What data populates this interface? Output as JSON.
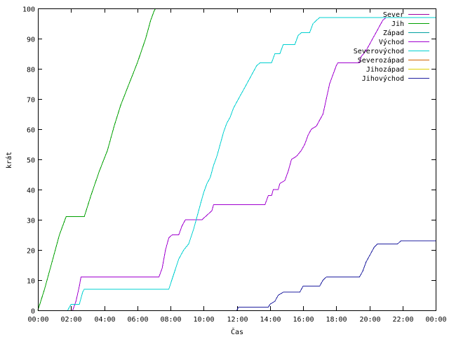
{
  "chart_data": {
    "type": "line",
    "title": "",
    "xlabel": "Čas",
    "ylabel": "krát",
    "xlim": [
      0,
      24
    ],
    "ylim": [
      0,
      100
    ],
    "x_ticks": [
      {
        "value": 0,
        "label": "00:00"
      },
      {
        "value": 2,
        "label": "02:00"
      },
      {
        "value": 4,
        "label": "04:00"
      },
      {
        "value": 6,
        "label": "06:00"
      },
      {
        "value": 8,
        "label": "08:00"
      },
      {
        "value": 10,
        "label": "10:00"
      },
      {
        "value": 12,
        "label": "12:00"
      },
      {
        "value": 14,
        "label": "14:00"
      },
      {
        "value": 16,
        "label": "16:00"
      },
      {
        "value": 18,
        "label": "18:00"
      },
      {
        "value": 20,
        "label": "20:00"
      },
      {
        "value": 22,
        "label": "22:00"
      },
      {
        "value": 24,
        "label": "00:00"
      }
    ],
    "y_ticks": [
      0,
      10,
      20,
      30,
      40,
      50,
      60,
      70,
      80,
      90,
      100
    ],
    "grid": false,
    "legend_position": "top-right",
    "series": [
      {
        "name": "Sever",
        "color": "#a000a0",
        "points": []
      },
      {
        "name": "Jih",
        "color": "#00a000",
        "points": [
          [
            0,
            0
          ],
          [
            0.4,
            7
          ],
          [
            0.9,
            17
          ],
          [
            1.3,
            25
          ],
          [
            1.7,
            31
          ],
          [
            2.8,
            31
          ],
          [
            3.2,
            38
          ],
          [
            3.7,
            46
          ],
          [
            4.2,
            53
          ],
          [
            4.6,
            61
          ],
          [
            5.0,
            68
          ],
          [
            5.5,
            75
          ],
          [
            6.0,
            82
          ],
          [
            6.5,
            90
          ],
          [
            6.8,
            96
          ],
          [
            7.0,
            99
          ],
          [
            7.1,
            100
          ]
        ]
      },
      {
        "name": "Západ",
        "color": "#00a0a0",
        "points": []
      },
      {
        "name": "Východ",
        "color": "#a000d0",
        "points": [
          [
            2.1,
            0
          ],
          [
            2.3,
            3
          ],
          [
            2.5,
            8
          ],
          [
            2.6,
            11
          ],
          [
            7.3,
            11
          ],
          [
            7.5,
            14
          ],
          [
            7.7,
            20
          ],
          [
            7.9,
            24
          ],
          [
            8.1,
            25
          ],
          [
            8.5,
            25
          ],
          [
            8.7,
            28
          ],
          [
            8.9,
            30
          ],
          [
            9.9,
            30
          ],
          [
            10.1,
            31
          ],
          [
            10.5,
            33
          ],
          [
            10.6,
            35
          ],
          [
            13.7,
            35
          ],
          [
            13.9,
            38
          ],
          [
            14.1,
            38
          ],
          [
            14.2,
            40
          ],
          [
            14.5,
            40
          ],
          [
            14.6,
            42
          ],
          [
            14.9,
            43
          ],
          [
            15.1,
            46
          ],
          [
            15.3,
            50
          ],
          [
            15.6,
            51
          ],
          [
            15.9,
            53
          ],
          [
            16.1,
            55
          ],
          [
            16.3,
            58
          ],
          [
            16.5,
            60
          ],
          [
            16.8,
            61
          ],
          [
            17.0,
            63
          ],
          [
            17.2,
            65
          ],
          [
            17.4,
            70
          ],
          [
            17.6,
            75
          ],
          [
            17.8,
            78
          ],
          [
            18.0,
            81
          ],
          [
            18.1,
            82
          ],
          [
            19.4,
            82
          ],
          [
            19.5,
            84
          ],
          [
            19.8,
            86
          ],
          [
            20.0,
            88
          ],
          [
            20.2,
            90
          ],
          [
            20.4,
            92
          ],
          [
            20.6,
            94
          ],
          [
            20.8,
            96
          ],
          [
            21.0,
            97
          ]
        ]
      },
      {
        "name": "Severovýchod",
        "color": "#00d0d0",
        "points": [
          [
            1.8,
            0
          ],
          [
            1.9,
            1
          ],
          [
            2.0,
            2
          ],
          [
            2.5,
            2
          ],
          [
            2.7,
            6
          ],
          [
            2.8,
            7
          ],
          [
            7.9,
            7
          ],
          [
            8.2,
            12
          ],
          [
            8.5,
            17
          ],
          [
            8.8,
            20
          ],
          [
            9.1,
            22
          ],
          [
            9.4,
            27
          ],
          [
            9.6,
            31
          ],
          [
            9.8,
            35
          ],
          [
            10.0,
            39
          ],
          [
            10.2,
            42
          ],
          [
            10.4,
            44
          ],
          [
            10.6,
            48
          ],
          [
            10.8,
            51
          ],
          [
            11.0,
            55
          ],
          [
            11.2,
            59
          ],
          [
            11.4,
            62
          ],
          [
            11.6,
            64
          ],
          [
            11.8,
            67
          ],
          [
            12.0,
            69
          ],
          [
            12.2,
            71
          ],
          [
            12.4,
            73
          ],
          [
            12.6,
            75
          ],
          [
            12.8,
            77
          ],
          [
            13.0,
            79
          ],
          [
            13.2,
            81
          ],
          [
            13.4,
            82
          ],
          [
            14.1,
            82
          ],
          [
            14.3,
            85
          ],
          [
            14.6,
            85
          ],
          [
            14.8,
            88
          ],
          [
            15.5,
            88
          ],
          [
            15.7,
            91
          ],
          [
            15.9,
            92
          ],
          [
            16.4,
            92
          ],
          [
            16.6,
            95
          ],
          [
            16.8,
            96
          ],
          [
            17.0,
            97
          ],
          [
            24,
            97
          ]
        ]
      },
      {
        "name": "Severozápad",
        "color": "#d06000",
        "points": []
      },
      {
        "name": "Jihozápad",
        "color": "#e0d000",
        "points": []
      },
      {
        "name": "Jihovýchod",
        "color": "#2020a0",
        "points": [
          [
            12.0,
            0
          ],
          [
            12.1,
            1
          ],
          [
            13.9,
            1
          ],
          [
            14.0,
            2
          ],
          [
            14.3,
            3
          ],
          [
            14.5,
            5
          ],
          [
            14.8,
            6
          ],
          [
            15.8,
            6
          ],
          [
            16.0,
            8
          ],
          [
            17.0,
            8
          ],
          [
            17.2,
            10
          ],
          [
            17.4,
            11
          ],
          [
            19.4,
            11
          ],
          [
            19.6,
            13
          ],
          [
            19.8,
            16
          ],
          [
            20.1,
            19
          ],
          [
            20.3,
            21
          ],
          [
            20.5,
            22
          ],
          [
            21.7,
            22
          ],
          [
            21.9,
            23
          ],
          [
            24,
            23
          ]
        ]
      }
    ]
  }
}
